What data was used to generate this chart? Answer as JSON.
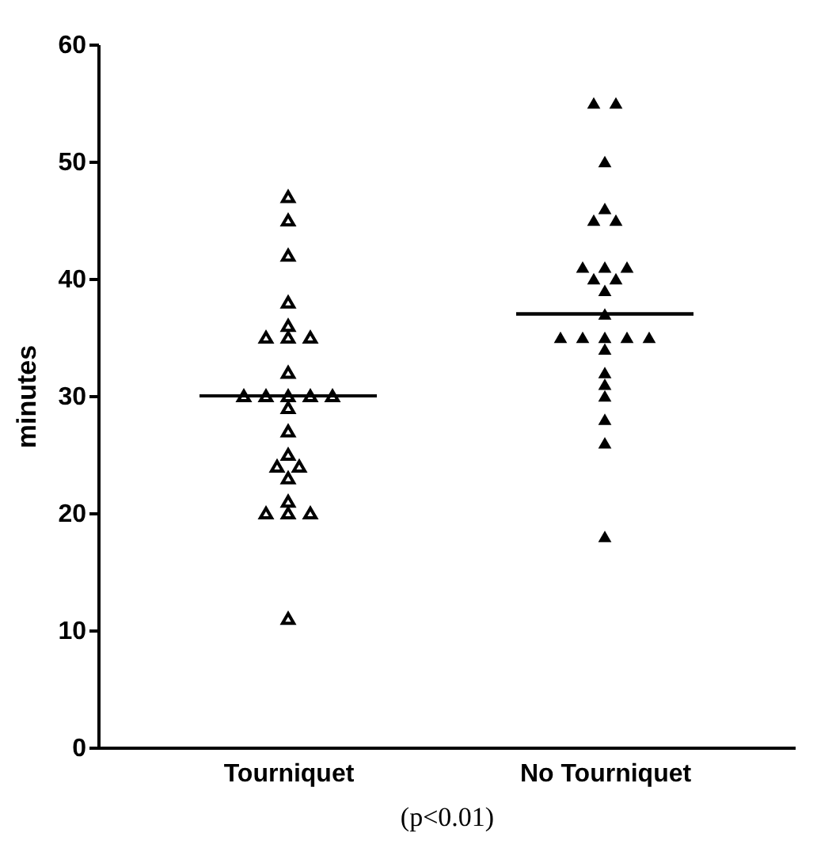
{
  "chart_data": {
    "type": "scatter",
    "categories": [
      "Tourniquet",
      "No Tourniquet"
    ],
    "xlabel": "(p<0.01)",
    "ylabel": "minutes",
    "ylim": [
      0,
      60
    ],
    "yticks": [
      0,
      10,
      20,
      30,
      40,
      50,
      60
    ],
    "grid": false,
    "marker": "triangle",
    "series": [
      {
        "color": "#000000",
        "x": [
          "Tourniquet",
          "Tourniquet",
          "Tourniquet",
          "Tourniquet",
          "Tourniquet",
          "Tourniquet",
          "Tourniquet",
          "Tourniquet",
          "Tourniquet",
          "Tourniquet",
          "Tourniquet",
          "Tourniquet",
          "Tourniquet",
          "Tourniquet",
          "Tourniquet",
          "Tourniquet",
          "Tourniquet",
          "Tourniquet",
          "Tourniquet",
          "Tourniquet",
          "Tourniquet",
          "Tourniquet",
          "Tourniquet",
          "Tourniquet",
          "Tourniquet"
        ],
        "values": [
          47,
          45,
          42,
          38,
          36,
          35,
          35,
          35,
          32,
          30,
          30,
          30,
          30,
          30,
          29,
          27,
          25,
          24,
          24,
          23,
          21,
          20,
          20,
          20,
          11
        ]
      },
      {
        "color": "#000000",
        "x": [
          "No Tourniquet",
          "No Tourniquet",
          "No Tourniquet",
          "No Tourniquet",
          "No Tourniquet",
          "No Tourniquet",
          "No Tourniquet",
          "No Tourniquet",
          "No Tourniquet",
          "No Tourniquet",
          "No Tourniquet",
          "No Tourniquet",
          "No Tourniquet",
          "No Tourniquet",
          "No Tourniquet",
          "No Tourniquet",
          "No Tourniquet",
          "No Tourniquet",
          "No Tourniquet",
          "No Tourniquet",
          "No Tourniquet",
          "No Tourniquet",
          "No Tourniquet",
          "No Tourniquet",
          "No Tourniquet"
        ],
        "values": [
          55,
          55,
          50,
          46,
          45,
          45,
          41,
          41,
          41,
          40,
          40,
          39,
          37,
          35,
          35,
          35,
          35,
          35,
          34,
          32,
          31,
          30,
          28,
          26,
          18
        ]
      },
      {
        "type": "box",
        "color": "#000000",
        "boxes": [
          {
            "low": 30,
            "q1": 30,
            "median": 30,
            "q3": 30,
            "high": 30
          },
          {
            "low": 37,
            "q1": 37,
            "median": 37,
            "q3": 37,
            "high": 37
          }
        ]
      }
    ]
  }
}
